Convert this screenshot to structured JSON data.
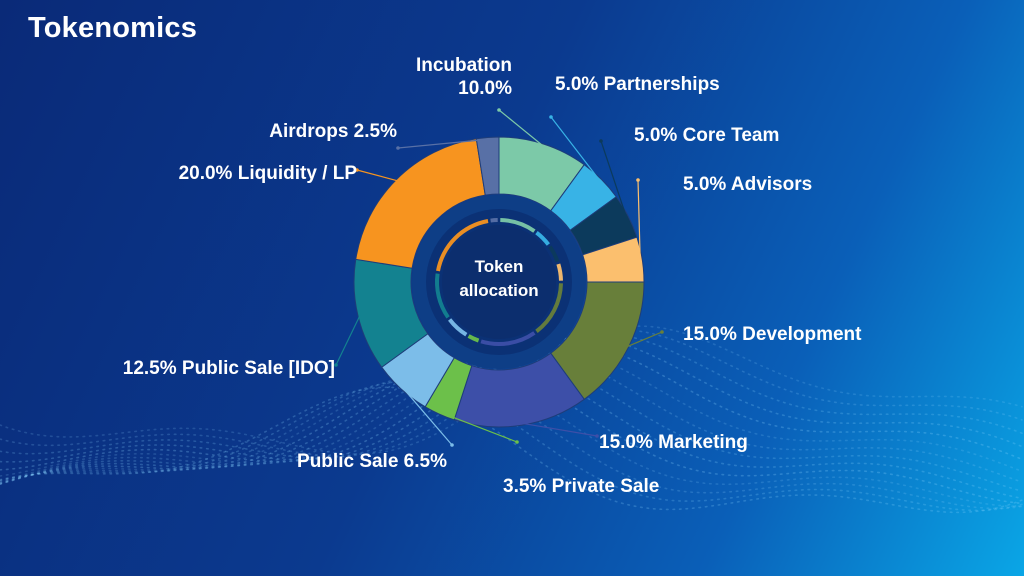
{
  "title": "Tokenomics",
  "center_label": [
    "Token",
    "allocation"
  ],
  "chart_data": {
    "type": "pie",
    "style": "donut",
    "categories": [
      "Incubation",
      "Partnerships",
      "Core Team",
      "Advisors",
      "Development",
      "Marketing",
      "Private Sale",
      "Public Sale",
      "Public Sale [IDO]",
      "Liquidity / LP",
      "Airdrops"
    ],
    "values": [
      10.0,
      5.0,
      5.0,
      5.0,
      15.0,
      15.0,
      3.5,
      6.5,
      12.5,
      20.0,
      2.5
    ],
    "colors": [
      "#7cc9a8",
      "#38b3e6",
      "#0c3a5c",
      "#fbbf6e",
      "#687f3a",
      "#3d4fa8",
      "#6cc04a",
      "#7cbde9",
      "#138290",
      "#f7941f",
      "#5870a6"
    ],
    "labels": [
      {
        "lines": [
          "Incubation",
          "10.0%"
        ],
        "anchor": "end"
      },
      {
        "lines": [
          "5.0% Partnerships"
        ],
        "anchor": "start"
      },
      {
        "lines": [
          "5.0% Core Team"
        ],
        "anchor": "start"
      },
      {
        "lines": [
          "5.0% Advisors"
        ],
        "anchor": "start"
      },
      {
        "lines": [
          "15.0% Development"
        ],
        "anchor": "start"
      },
      {
        "lines": [
          "15.0% Marketing"
        ],
        "anchor": "start"
      },
      {
        "lines": [
          "3.5% Private Sale"
        ],
        "anchor": "start"
      },
      {
        "lines": [
          "Public Sale 6.5%"
        ],
        "anchor": "end"
      },
      {
        "lines": [
          "12.5% Public Sale [IDO]"
        ],
        "anchor": "end"
      },
      {
        "lines": [
          "20.0% Liquidity / LP"
        ],
        "anchor": "end"
      },
      {
        "lines": [
          "Airdrops 2.5%"
        ],
        "anchor": "end"
      }
    ]
  }
}
